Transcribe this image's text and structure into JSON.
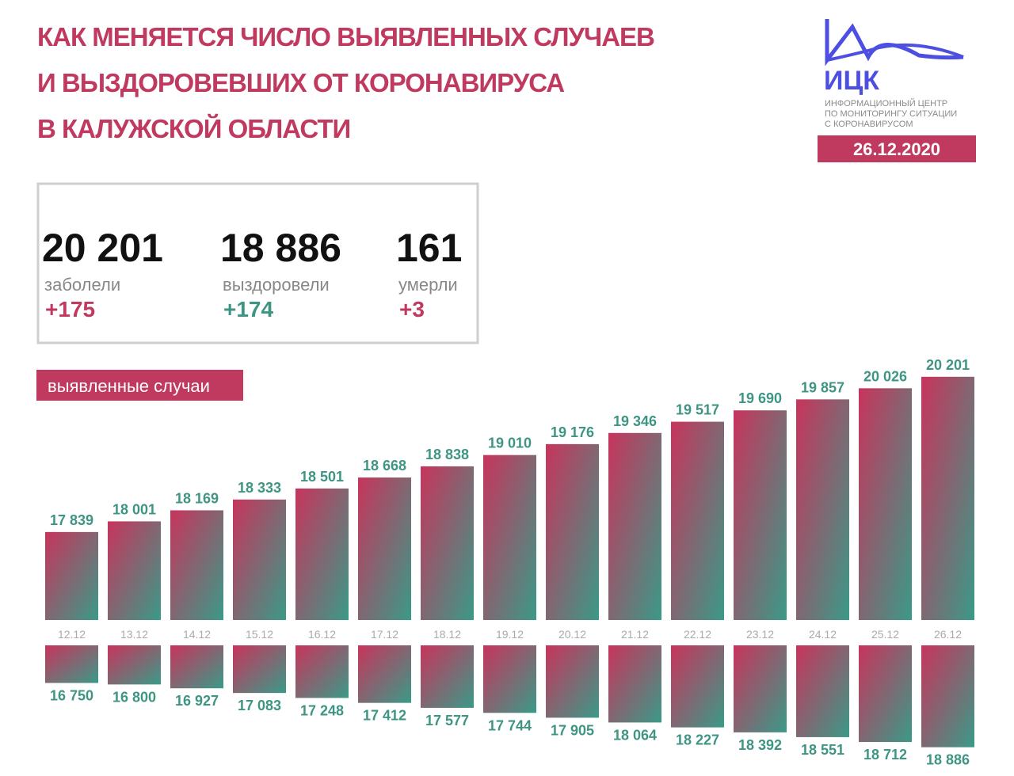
{
  "header": {
    "title": [
      "КАК МЕНЯЕТСЯ ЧИСЛО ВЫЯВЛЕННЫХ СЛУЧАЕВ",
      "И ВЫЗДОРОВЕВШИХ ОТ КОРОНАВИРУСА",
      "В КАЛУЖСКОЙ ОБЛАСТИ"
    ],
    "logo": {
      "abbr": "ИЦК",
      "caption": [
        "ИНФОРМАЦИОННЫЙ ЦЕНТР",
        "ПО МОНИТОРИНГУ СИТУАЦИИ",
        "С КОРОНАВИРУСОМ"
      ]
    },
    "date": "26.12.2020"
  },
  "summary": [
    {
      "value": "20 201",
      "label": "заболели",
      "delta": "+175",
      "color": "#c03a60"
    },
    {
      "value": "18 886",
      "label": "выздоровели",
      "delta": "+174",
      "color": "#3e9583"
    },
    {
      "value": "161",
      "label": "умерли",
      "delta": "+3",
      "color": "#c03a60"
    }
  ],
  "chart_data": {
    "type": "bar",
    "categories": [
      "12.12",
      "13.12",
      "14.12",
      "15.12",
      "16.12",
      "17.12",
      "18.12",
      "19.12",
      "20.12",
      "21.12",
      "22.12",
      "23.12",
      "24.12",
      "25.12",
      "26.12"
    ],
    "gradient": [
      "#c8345c",
      "#3a9a88"
    ],
    "ylim": [
      16500,
      20500
    ],
    "y2lim": [
      15500,
      19500
    ],
    "series": [
      {
        "name": "выявленные случаи",
        "values": [
          17839,
          18001,
          18169,
          18333,
          18501,
          18668,
          18838,
          19010,
          19176,
          19346,
          19517,
          19690,
          19857,
          20026,
          20201
        ],
        "value_labels": [
          "17 839",
          "18 001",
          "18 169",
          "18 333",
          "18 501",
          "18 668",
          "18 838",
          "19 010",
          "19 176",
          "19 346",
          "19 517",
          "19 690",
          "19 857",
          "20 026",
          "20 201"
        ]
      },
      {
        "axis": "y2",
        "values": [
          16750,
          16800,
          16927,
          17083,
          17248,
          17412,
          17577,
          17744,
          17905,
          18064,
          18227,
          18392,
          18551,
          18712,
          18886
        ],
        "value_labels": [
          "16 750",
          "16 800",
          "16 927",
          "17 083",
          "17 248",
          "17 412",
          "17 577",
          "17 744",
          "17 905",
          "18 064",
          "18 227",
          "18 392",
          "18 551",
          "18 712",
          "18 886"
        ]
      }
    ]
  }
}
